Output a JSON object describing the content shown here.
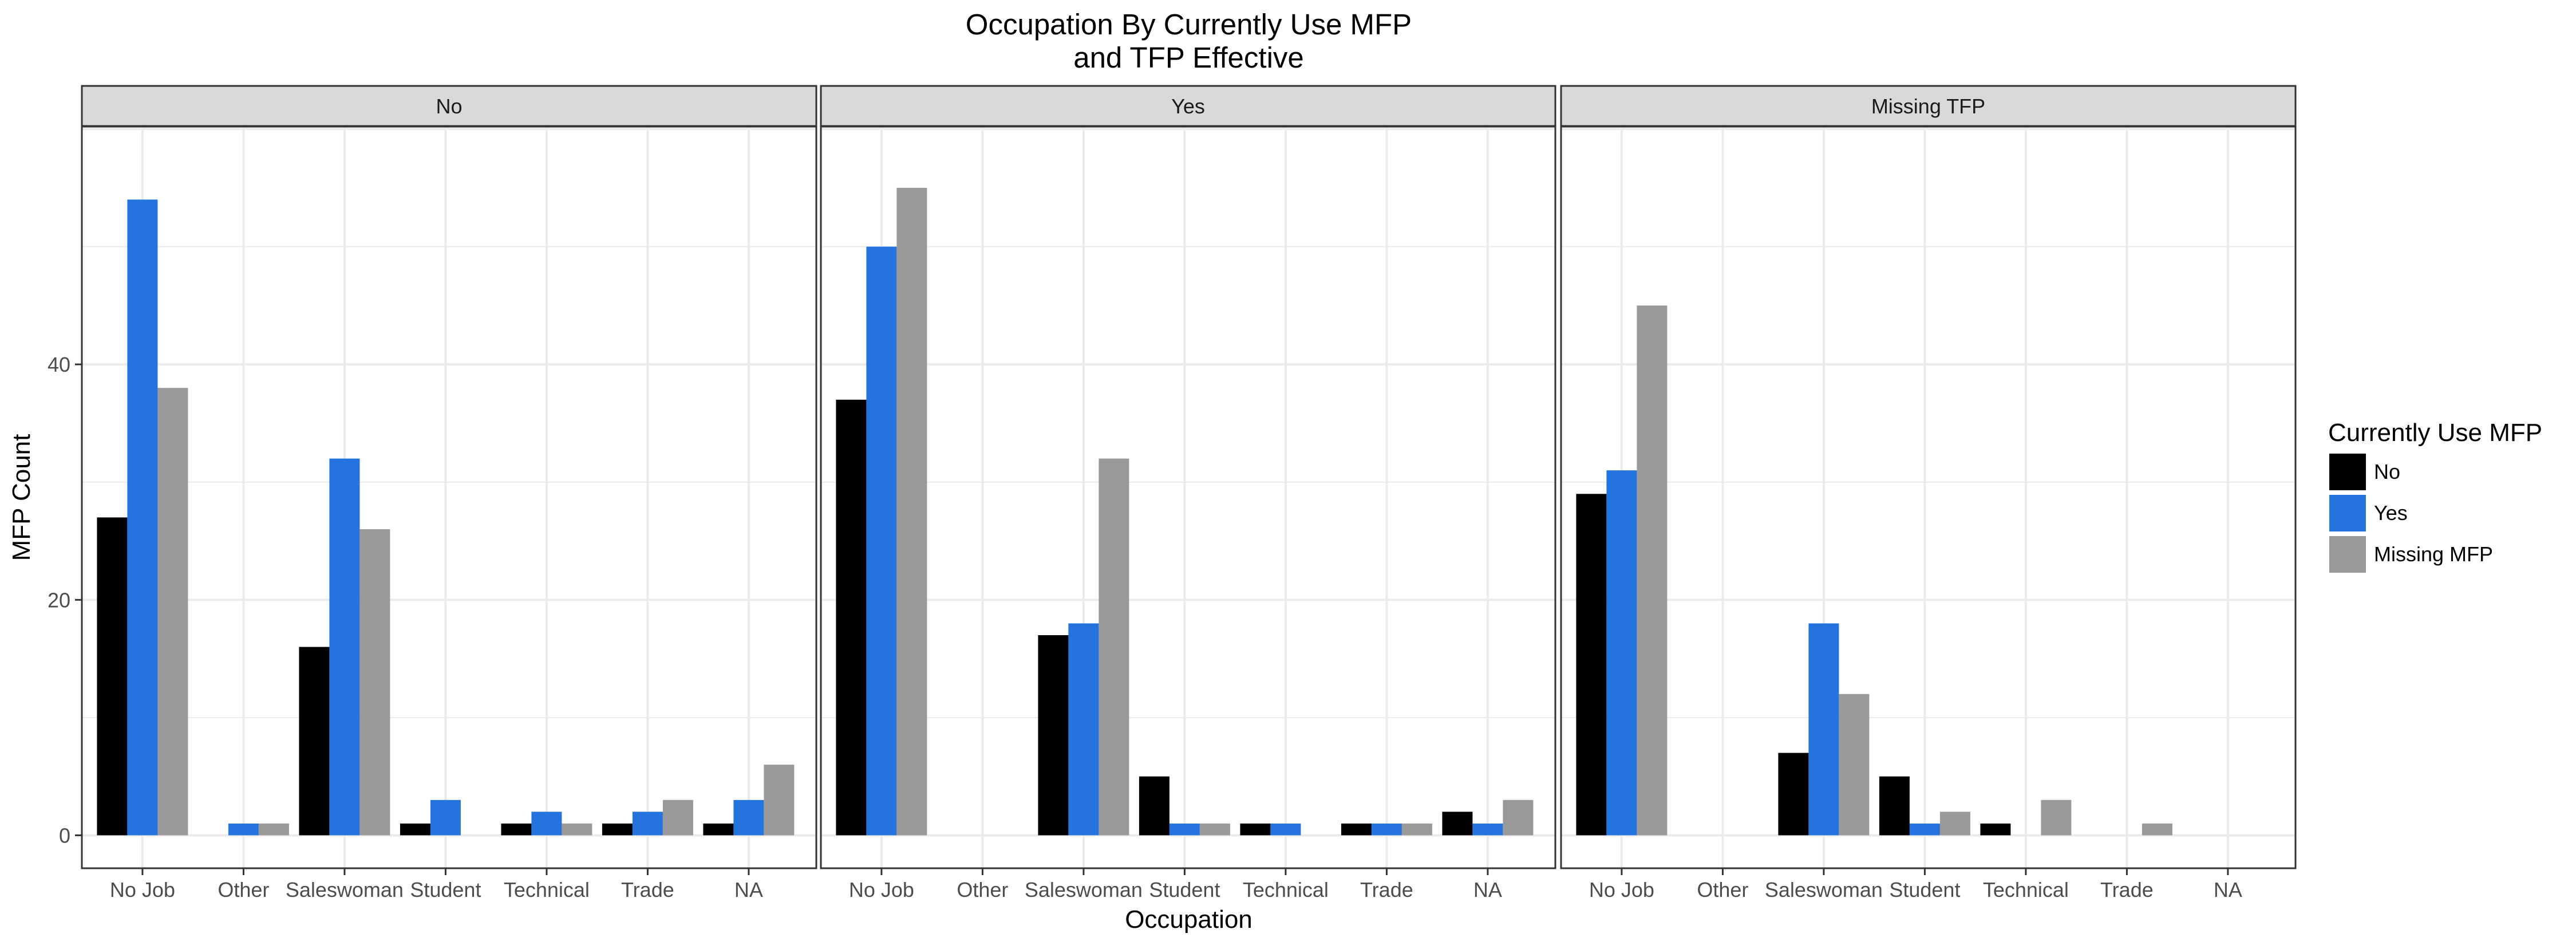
{
  "chart_data": {
    "type": "bar",
    "title": "Occupation By Currently Use MFP\nand TFP Effective",
    "xlabel": "Occupation",
    "ylabel": "MFP Count",
    "ylim": [
      -2.8,
      60.2
    ],
    "yticks": [
      0,
      20,
      40
    ],
    "grid": true,
    "legend": {
      "title": "Currently Use MFP",
      "placement": "right",
      "entries": [
        "No",
        "Yes",
        "Missing MFP"
      ]
    },
    "colors": {
      "No": "#000000",
      "Yes": "#2473de",
      "Missing MFP": "#999999",
      "strip_fill": "#d9d9d9",
      "grid": "#ebebeb",
      "border": "#333333",
      "text": "#000000",
      "axis_text": "#4d4d4d"
    },
    "categories": [
      "No Job",
      "Other",
      "Saleswoman",
      "Student",
      "Technical",
      "Trade",
      "NA"
    ],
    "facets": [
      {
        "label": "No",
        "series": [
          {
            "name": "No",
            "values": [
              27,
              null,
              16,
              1,
              1,
              1,
              1
            ]
          },
          {
            "name": "Yes",
            "values": [
              54,
              1,
              32,
              3,
              2,
              2,
              3
            ]
          },
          {
            "name": "Missing MFP",
            "values": [
              38,
              1,
              26,
              null,
              1,
              3,
              6
            ]
          }
        ]
      },
      {
        "label": "Yes",
        "series": [
          {
            "name": "No",
            "values": [
              37,
              null,
              17,
              5,
              1,
              1,
              2
            ]
          },
          {
            "name": "Yes",
            "values": [
              50,
              null,
              18,
              1,
              1,
              1,
              1
            ]
          },
          {
            "name": "Missing MFP",
            "values": [
              55,
              null,
              32,
              1,
              null,
              1,
              3
            ]
          }
        ]
      },
      {
        "label": "Missing TFP",
        "series": [
          {
            "name": "No",
            "values": [
              29,
              null,
              7,
              5,
              1,
              null,
              null
            ]
          },
          {
            "name": "Yes",
            "values": [
              31,
              null,
              18,
              1,
              null,
              null,
              null
            ]
          },
          {
            "name": "Missing MFP",
            "values": [
              45,
              null,
              12,
              2,
              3,
              1,
              null
            ]
          }
        ]
      }
    ]
  }
}
